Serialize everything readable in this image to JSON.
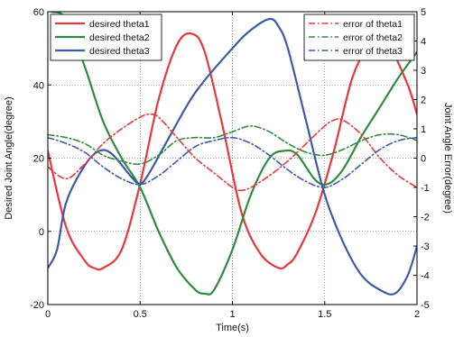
{
  "chart_data": {
    "type": "line",
    "xlabel": "Time(s)",
    "ylabel_left": "Desired Joint Angle(degree)",
    "ylabel_right": "Joint Angle Error(degree)",
    "xlim": [
      0,
      2
    ],
    "ylim_left": [
      -20,
      60
    ],
    "ylim_right": [
      -5,
      5
    ],
    "x_ticks": [
      "0",
      "0.5",
      "1",
      "1.5",
      "2"
    ],
    "y_left_ticks": [
      "-20",
      "0",
      "20",
      "40",
      "60"
    ],
    "y_right_ticks": [
      "-5",
      "-4",
      "-3",
      "-2",
      "-1",
      "0",
      "1",
      "2",
      "3",
      "4",
      "5"
    ],
    "grid": true,
    "series": [
      {
        "name": "desired theta1",
        "axis": "left",
        "style": "solid",
        "color": "#e8373b",
        "x": [
          0,
          0.1,
          0.2,
          0.25,
          0.3,
          0.4,
          0.5,
          0.6,
          0.7,
          0.78,
          0.85,
          0.95,
          1.05,
          1.15,
          1.25,
          1.3,
          1.35,
          1.45,
          1.55,
          1.65,
          1.75,
          1.8,
          1.85,
          1.95,
          2.0
        ],
        "y": [
          22,
          1,
          -8,
          -10,
          -10,
          -5,
          13,
          36,
          51,
          54,
          49,
          28,
          5,
          -6,
          -10,
          -9,
          -6,
          5,
          22,
          42,
          52,
          53,
          51,
          40,
          32
        ]
      },
      {
        "name": "desired theta2",
        "axis": "left",
        "style": "solid",
        "color": "#2e8b3d",
        "x": [
          0.02,
          0.1,
          0.2,
          0.3,
          0.4,
          0.5,
          0.6,
          0.7,
          0.8,
          0.85,
          0.9,
          1.0,
          1.1,
          1.2,
          1.28,
          1.35,
          1.45,
          1.52,
          1.6,
          1.7,
          1.8,
          1.9,
          2.0
        ],
        "y": [
          60,
          58,
          45,
          30,
          20,
          12,
          0,
          -10,
          -16,
          -17,
          -16,
          -5,
          10,
          20,
          22,
          21,
          14,
          13,
          17,
          26,
          34,
          42,
          49
        ]
      },
      {
        "name": "desired theta3",
        "axis": "left",
        "style": "solid",
        "color": "#3d5aa8",
        "x": [
          0,
          0.05,
          0.1,
          0.2,
          0.28,
          0.35,
          0.45,
          0.5,
          0.55,
          0.65,
          0.8,
          1.0,
          1.1,
          1.2,
          1.25,
          1.3,
          1.4,
          1.5,
          1.6,
          1.7,
          1.8,
          1.88,
          1.95,
          2.0
        ],
        "y": [
          -10,
          -5,
          8,
          18,
          22,
          21,
          15,
          13,
          16,
          25,
          38,
          50,
          55,
          58,
          56,
          50,
          30,
          10,
          -3,
          -12,
          -16,
          -17,
          -12,
          -4
        ]
      },
      {
        "name": "error of theta1",
        "axis": "right",
        "style": "dashdot",
        "color": "#e8373b",
        "x": [
          0,
          0.1,
          0.2,
          0.3,
          0.4,
          0.5,
          0.55,
          0.6,
          0.7,
          0.8,
          0.9,
          1.0,
          1.05,
          1.1,
          1.2,
          1.3,
          1.4,
          1.5,
          1.55,
          1.6,
          1.7,
          1.8,
          1.9,
          2.0
        ],
        "y": [
          -0.3,
          -0.7,
          -0.2,
          0.5,
          1.0,
          1.4,
          1.5,
          1.4,
          0.7,
          0.0,
          -0.5,
          -1.0,
          -1.1,
          -1.0,
          -0.6,
          -0.1,
          0.5,
          1.1,
          1.3,
          1.3,
          0.8,
          0.0,
          -0.6,
          -1.0
        ]
      },
      {
        "name": "error of theta2",
        "axis": "right",
        "style": "dashdot",
        "color": "#2e8b3d",
        "x": [
          0,
          0.1,
          0.2,
          0.3,
          0.4,
          0.5,
          0.6,
          0.7,
          0.8,
          0.9,
          1.0,
          1.1,
          1.2,
          1.3,
          1.4,
          1.5,
          1.6,
          1.7,
          1.8,
          1.9,
          2.0
        ],
        "y": [
          0.8,
          0.7,
          0.5,
          0.1,
          -0.1,
          -0.2,
          0.1,
          0.6,
          0.7,
          0.7,
          0.9,
          1.1,
          0.9,
          0.5,
          0.2,
          0.1,
          0.3,
          0.6,
          0.8,
          0.8,
          0.6
        ]
      },
      {
        "name": "error of theta3",
        "axis": "right",
        "style": "dashdot",
        "color": "#3d5aa8",
        "x": [
          0,
          0.1,
          0.2,
          0.3,
          0.4,
          0.5,
          0.6,
          0.7,
          0.8,
          0.9,
          1.0,
          1.1,
          1.2,
          1.3,
          1.4,
          1.5,
          1.6,
          1.7,
          1.8,
          1.9,
          2.0
        ],
        "y": [
          0.7,
          0.5,
          0.2,
          -0.3,
          -0.7,
          -0.9,
          -0.6,
          -0.1,
          0.4,
          0.6,
          0.7,
          0.5,
          0.1,
          -0.4,
          -0.8,
          -1.0,
          -0.7,
          -0.2,
          0.3,
          0.6,
          0.7
        ]
      }
    ],
    "legend_left": [
      "desired theta1",
      "desired theta2",
      "desired theta3"
    ],
    "legend_right": [
      "error of theta1",
      "error of theta2",
      "error of theta3"
    ],
    "legend_left_placement": "top-left",
    "legend_right_placement": "top-right"
  }
}
